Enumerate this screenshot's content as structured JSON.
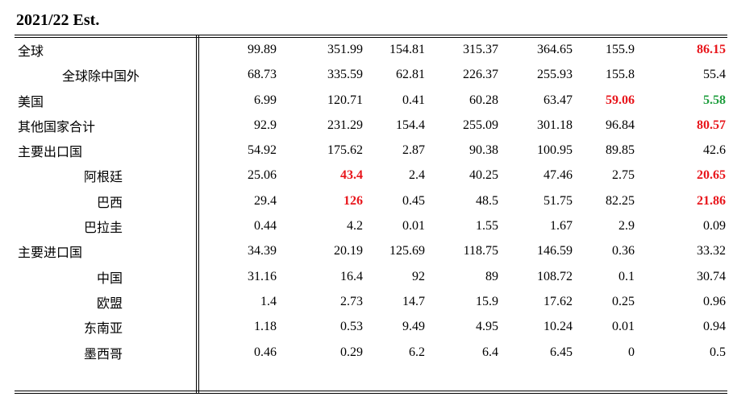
{
  "title": "2021/22 Est.",
  "colors": {
    "highlight_red": "#e8151b",
    "highlight_green": "#1f9e3e"
  },
  "rows": [
    {
      "label": "全球",
      "indent": 0,
      "values": [
        "99.89",
        "351.99",
        "154.81",
        "315.37",
        "364.65",
        "155.9",
        "86.15"
      ],
      "styles": [
        "",
        "",
        "",
        "",
        "",
        "",
        "red"
      ]
    },
    {
      "label": "全球除中国外",
      "indent": 2,
      "values": [
        "68.73",
        "335.59",
        "62.81",
        "226.37",
        "255.93",
        "155.8",
        "55.4"
      ],
      "styles": [
        "",
        "",
        "",
        "",
        "",
        "",
        ""
      ]
    },
    {
      "label": "美国",
      "indent": 0,
      "values": [
        "6.99",
        "120.71",
        "0.41",
        "60.28",
        "63.47",
        "59.06",
        "5.58"
      ],
      "styles": [
        "",
        "",
        "",
        "",
        "",
        "red",
        "green"
      ]
    },
    {
      "label": "其他国家合计",
      "indent": 0,
      "values": [
        "92.9",
        "231.29",
        "154.4",
        "255.09",
        "301.18",
        "96.84",
        "80.57"
      ],
      "styles": [
        "",
        "",
        "",
        "",
        "",
        "",
        "red"
      ]
    },
    {
      "label": "主要出口国",
      "indent": 0,
      "values": [
        "54.92",
        "175.62",
        "2.87",
        "90.38",
        "100.95",
        "89.85",
        "42.6"
      ],
      "styles": [
        "",
        "",
        "",
        "",
        "",
        "",
        ""
      ]
    },
    {
      "label": "阿根廷",
      "indent": 3,
      "values": [
        "25.06",
        "43.4",
        "2.4",
        "40.25",
        "47.46",
        "2.75",
        "20.65"
      ],
      "styles": [
        "",
        "red",
        "",
        "",
        "",
        "",
        "red"
      ]
    },
    {
      "label": "巴西",
      "indent": 4,
      "values": [
        "29.4",
        "126",
        "0.45",
        "48.5",
        "51.75",
        "82.25",
        "21.86"
      ],
      "styles": [
        "",
        "red",
        "",
        "",
        "",
        "",
        "red"
      ]
    },
    {
      "label": "巴拉圭",
      "indent": 3,
      "values": [
        "0.44",
        "4.2",
        "0.01",
        "1.55",
        "1.67",
        "2.9",
        "0.09"
      ],
      "styles": [
        "",
        "",
        "",
        "",
        "",
        "",
        ""
      ]
    },
    {
      "label": "主要进口国",
      "indent": 0,
      "values": [
        "34.39",
        "20.19",
        "125.69",
        "118.75",
        "146.59",
        "0.36",
        "33.32"
      ],
      "styles": [
        "",
        "",
        "",
        "",
        "",
        "",
        ""
      ]
    },
    {
      "label": "中国",
      "indent": 4,
      "values": [
        "31.16",
        "16.4",
        "92",
        "89",
        "108.72",
        "0.1",
        "30.74"
      ],
      "styles": [
        "",
        "",
        "",
        "",
        "",
        "",
        ""
      ]
    },
    {
      "label": "欧盟",
      "indent": 4,
      "values": [
        "1.4",
        "2.73",
        "14.7",
        "15.9",
        "17.62",
        "0.25",
        "0.96"
      ],
      "styles": [
        "",
        "",
        "",
        "",
        "",
        "",
        ""
      ]
    },
    {
      "label": "东南亚",
      "indent": 3,
      "values": [
        "1.18",
        "0.53",
        "9.49",
        "4.95",
        "10.24",
        "0.01",
        "0.94"
      ],
      "styles": [
        "",
        "",
        "",
        "",
        "",
        "",
        ""
      ]
    },
    {
      "label": "墨西哥",
      "indent": 3,
      "values": [
        "0.46",
        "0.29",
        "6.2",
        "6.4",
        "6.45",
        "0",
        "0.5"
      ],
      "styles": [
        "",
        "",
        "",
        "",
        "",
        "",
        ""
      ]
    }
  ]
}
